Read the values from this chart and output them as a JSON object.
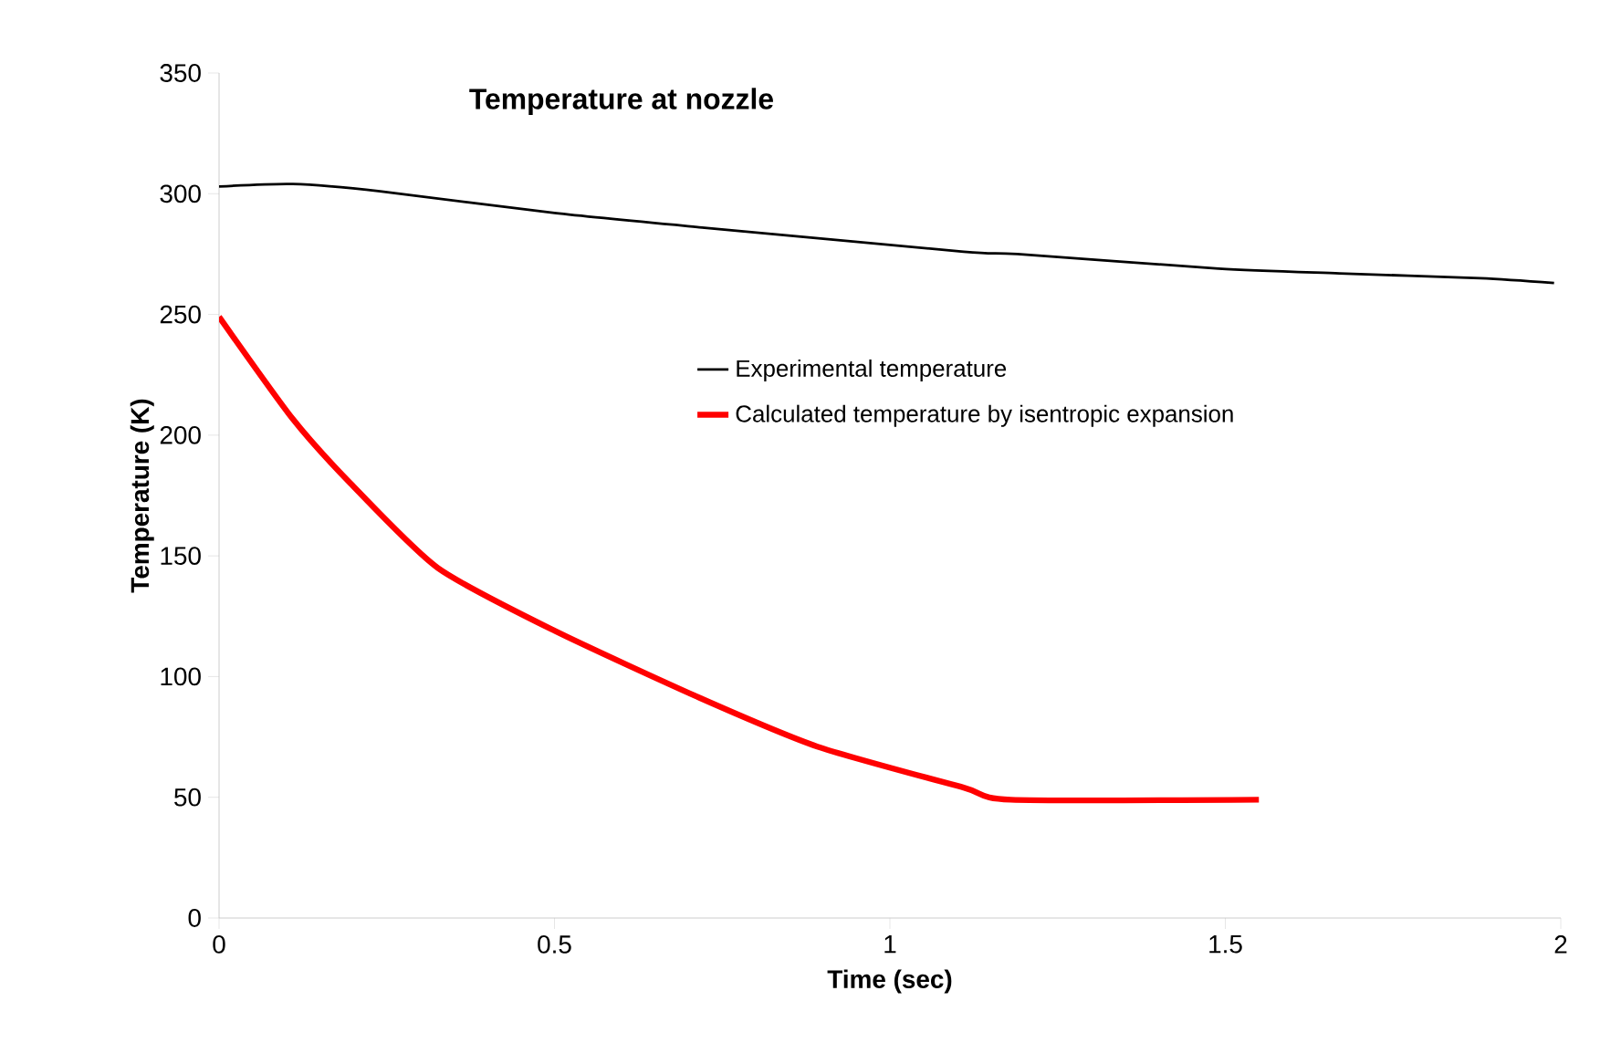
{
  "chart_data": {
    "type": "line",
    "title": "Temperature at nozzle",
    "xlabel": "Time (sec)",
    "ylabel": "Temperature (K)",
    "xlim": [
      0,
      2
    ],
    "xticks": [
      0,
      0.5,
      1,
      1.5,
      2
    ],
    "ylim": [
      0,
      350
    ],
    "yticks": [
      0,
      50,
      100,
      150,
      200,
      250,
      300,
      350
    ],
    "grid": false,
    "legend": "right",
    "marker": "none",
    "line_style": "solid",
    "series": [
      {
        "name": "Experimental temperature",
        "color": "#000000",
        "x": [
          0,
          0.11,
          0.24,
          0.5,
          0.72,
          1.11,
          1.19,
          1.49,
          1.67,
          1.88,
          1.99
        ],
        "values": [
          303,
          304,
          301,
          292,
          286,
          276,
          275,
          269,
          267,
          265,
          263
        ]
      },
      {
        "name": "Calculated temperature by isentropic expansion",
        "color": "#ff0000",
        "x": [
          0,
          0.109,
          0.196,
          0.326,
          0.5,
          0.718,
          0.892,
          1.11,
          1.18,
          1.55
        ],
        "values": [
          249,
          207,
          180,
          145,
          119,
          91,
          71,
          54,
          49,
          49
        ]
      }
    ]
  }
}
